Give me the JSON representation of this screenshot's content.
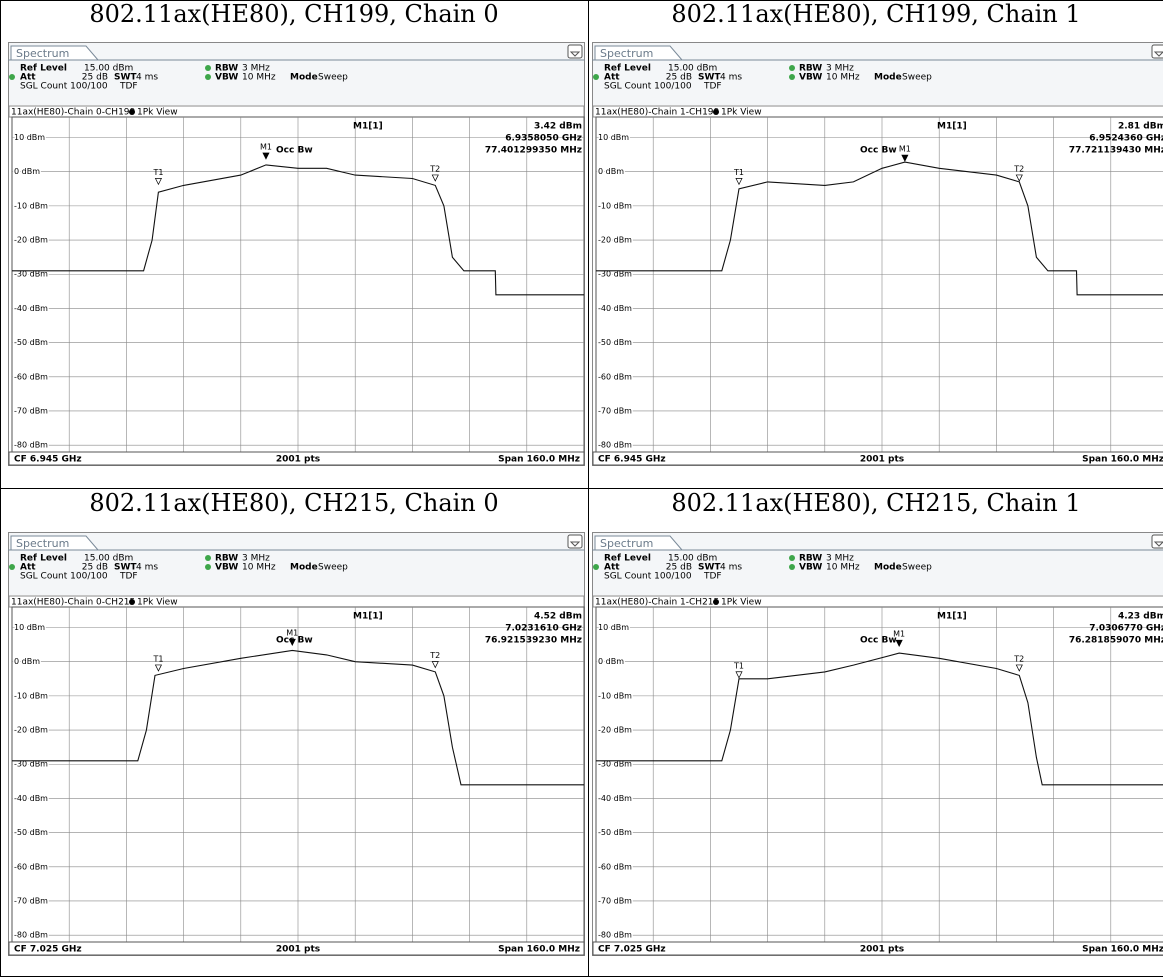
{
  "cells": [
    {
      "heading": "802.11ax(HE80), CH199, Chain 0",
      "screen": {
        "tab": "Spectrum",
        "ref_level_label": "Ref Level",
        "ref_level": "15.00 dBm",
        "att_label": "Att",
        "att": "25 dB",
        "swt_label": "SWT",
        "swt": "4 ms",
        "rbw_label": "RBW",
        "rbw": "3 MHz",
        "vbw_label": "VBW",
        "vbw": "10 MHz",
        "mode_label": "Mode",
        "mode": "Sweep",
        "count": "SGL Count 100/100",
        "tdf": "TDF",
        "trace_title": "11ax(HE80)-Chain 0-CH199",
        "view": "1Pk View",
        "marker_label": "M1[1]",
        "marker_level": "3.42 dBm",
        "marker_freq": "6.9358050 GHz",
        "occ_label": "Occ Bw",
        "occ_bw": "77.401299350 MHz",
        "cf": "CF 6.945 GHz",
        "pts": "2001 pts",
        "span": "Span 160.0 MHz",
        "y_range": [
          -82,
          16
        ],
        "y_grid": [
          {
            "value": 10,
            "label": "10 dBm"
          },
          {
            "value": 0,
            "label": "0 dBm"
          },
          {
            "value": -10,
            "label": "-10 dBm"
          },
          {
            "value": -20,
            "label": "-20 dBm"
          },
          {
            "value": -30,
            "label": "-30 dBm"
          },
          {
            "value": -40,
            "label": "-40 dBm"
          },
          {
            "value": -50,
            "label": "-50 dBm"
          },
          {
            "value": -60,
            "label": "-60 dBm"
          },
          {
            "value": -70,
            "label": "-70 dBm"
          },
          {
            "value": -80,
            "label": "-80 dBm"
          }
        ],
        "markers": [
          {
            "label": "M1",
            "x": 4.44,
            "level": 3.42
          },
          {
            "label": "T1",
            "x": 2.56,
            "level": -4
          },
          {
            "label": "T2",
            "x": 7.4,
            "level": -3
          }
        ],
        "trace": {
          "x": [
            0,
            1,
            2.3,
            2.45,
            2.56,
            3,
            4,
            4.44,
            5,
            5.5,
            6,
            7,
            7.4,
            7.55,
            7.7,
            7.9,
            8.45,
            8.46,
            10
          ],
          "y": [
            -29,
            -29,
            -29,
            -20,
            -6,
            -4,
            -1,
            2,
            1,
            1,
            -1,
            -2,
            -4,
            -10,
            -25,
            -29,
            -29,
            -36,
            -36
          ]
        }
      }
    },
    {
      "heading": "802.11ax(HE80), CH199, Chain 1",
      "screen": {
        "tab": "Spectrum",
        "ref_level_label": "Ref Level",
        "ref_level": "15.00 dBm",
        "att_label": "Att",
        "att": "25 dB",
        "swt_label": "SWT",
        "swt": "4 ms",
        "rbw_label": "RBW",
        "rbw": "3 MHz",
        "vbw_label": "VBW",
        "vbw": "10 MHz",
        "mode_label": "Mode",
        "mode": "Sweep",
        "count": "SGL Count 100/100",
        "tdf": "TDF",
        "trace_title": "11ax(HE80)-Chain 1-CH199",
        "view": "1Pk View",
        "marker_label": "M1[1]",
        "marker_level": "2.81 dBm",
        "marker_freq": "6.9524360 GHz",
        "occ_label": "Occ Bw",
        "occ_bw": "77.721139430 MHz",
        "cf": "CF 6.945 GHz",
        "pts": "2001 pts",
        "span": "Span 160.0 MHz",
        "y_range": [
          -82,
          16
        ],
        "y_grid": [
          {
            "value": 10,
            "label": "10 dBm"
          },
          {
            "value": 0,
            "label": "0 dBm"
          },
          {
            "value": -10,
            "label": "-10 dBm"
          },
          {
            "value": -20,
            "label": "-20 dBm"
          },
          {
            "value": -30,
            "label": "-30 dBm"
          },
          {
            "value": -40,
            "label": "-40 dBm"
          },
          {
            "value": -50,
            "label": "-50 dBm"
          },
          {
            "value": -60,
            "label": "-60 dBm"
          },
          {
            "value": -70,
            "label": "-70 dBm"
          },
          {
            "value": -80,
            "label": "-80 dBm"
          }
        ],
        "markers": [
          {
            "label": "M1",
            "x": 5.4,
            "level": 2.81
          },
          {
            "label": "T1",
            "x": 2.5,
            "level": -4
          },
          {
            "label": "T2",
            "x": 7.4,
            "level": -3
          }
        ],
        "trace": {
          "x": [
            0,
            1,
            2.2,
            2.35,
            2.5,
            3,
            4,
            4.5,
            5,
            5.4,
            6,
            7,
            7.4,
            7.55,
            7.7,
            7.9,
            8.4,
            8.41,
            10
          ],
          "y": [
            -29,
            -29,
            -29,
            -20,
            -5,
            -3,
            -4,
            -3,
            1,
            2.8,
            1,
            -1,
            -3,
            -10,
            -25,
            -29,
            -29,
            -36,
            -36
          ]
        }
      }
    },
    {
      "heading": "802.11ax(HE80), CH215, Chain 0",
      "screen": {
        "tab": "Spectrum",
        "ref_level_label": "Ref Level",
        "ref_level": "15.00 dBm",
        "att_label": "Att",
        "att": "25 dB",
        "swt_label": "SWT",
        "swt": "4 ms",
        "rbw_label": "RBW",
        "rbw": "3 MHz",
        "vbw_label": "VBW",
        "vbw": "10 MHz",
        "mode_label": "Mode",
        "mode": "Sweep",
        "count": "SGL Count 100/100",
        "tdf": "TDF",
        "trace_title": "11ax(HE80)-Chain 0-CH215",
        "view": "1Pk View",
        "marker_label": "M1[1]",
        "marker_level": "4.52 dBm",
        "marker_freq": "7.0231610 GHz",
        "occ_label": "Occ Bw",
        "occ_bw": "76.921539230 MHz",
        "cf": "CF 7.025 GHz",
        "pts": "2001 pts",
        "span": "Span 160.0 MHz",
        "y_range": [
          -82,
          16
        ],
        "y_grid": [
          {
            "value": 10,
            "label": "10 dBm"
          },
          {
            "value": 0,
            "label": "0 dBm"
          },
          {
            "value": -10,
            "label": "-10 dBm"
          },
          {
            "value": -20,
            "label": "-20 dBm"
          },
          {
            "value": -30,
            "label": "-30 dBm"
          },
          {
            "value": -40,
            "label": "-40 dBm"
          },
          {
            "value": -50,
            "label": "-50 dBm"
          },
          {
            "value": -60,
            "label": "-60 dBm"
          },
          {
            "value": -70,
            "label": "-70 dBm"
          },
          {
            "value": -80,
            "label": "-80 dBm"
          }
        ],
        "markers": [
          {
            "label": "M1",
            "x": 4.9,
            "level": 4.52
          },
          {
            "label": "T1",
            "x": 2.56,
            "level": -3
          },
          {
            "label": "T2",
            "x": 7.4,
            "level": -2
          }
        ],
        "trace": {
          "x": [
            0,
            1,
            2.2,
            2.35,
            2.5,
            3,
            4,
            4.9,
            5.5,
            6,
            7,
            7.4,
            7.55,
            7.7,
            7.85,
            10
          ],
          "y": [
            -29,
            -29,
            -29,
            -20,
            -4,
            -2,
            1,
            3.3,
            2,
            0,
            -1,
            -3,
            -10,
            -25,
            -36,
            -36
          ]
        }
      }
    },
    {
      "heading": "802.11ax(HE80), CH215, Chain 1",
      "screen": {
        "tab": "Spectrum",
        "ref_level_label": "Ref Level",
        "ref_level": "15.00 dBm",
        "att_label": "Att",
        "att": "25 dB",
        "swt_label": "SWT",
        "swt": "4 ms",
        "rbw_label": "RBW",
        "rbw": "3 MHz",
        "vbw_label": "VBW",
        "vbw": "10 MHz",
        "mode_label": "Mode",
        "mode": "Sweep",
        "count": "SGL Count 100/100",
        "tdf": "TDF",
        "trace_title": "11ax(HE80)-Chain 1-CH215",
        "view": "1Pk View",
        "marker_label": "M1[1]",
        "marker_level": "4.23 dBm",
        "marker_freq": "7.0306770 GHz",
        "occ_label": "Occ Bw",
        "occ_bw": "76.281859070 MHz",
        "cf": "CF 7.025 GHz",
        "pts": "2001 pts",
        "span": "Span 160.0 MHz",
        "y_range": [
          -82,
          16
        ],
        "y_grid": [
          {
            "value": 10,
            "label": "10 dBm"
          },
          {
            "value": 0,
            "label": "0 dBm"
          },
          {
            "value": -10,
            "label": "-10 dBm"
          },
          {
            "value": -20,
            "label": "-20 dBm"
          },
          {
            "value": -30,
            "label": "-30 dBm"
          },
          {
            "value": -40,
            "label": "-40 dBm"
          },
          {
            "value": -50,
            "label": "-50 dBm"
          },
          {
            "value": -60,
            "label": "-60 dBm"
          },
          {
            "value": -70,
            "label": "-70 dBm"
          },
          {
            "value": -80,
            "label": "-80 dBm"
          }
        ],
        "markers": [
          {
            "label": "M1",
            "x": 5.3,
            "level": 4.23
          },
          {
            "label": "T1",
            "x": 2.5,
            "level": -5
          },
          {
            "label": "T2",
            "x": 7.4,
            "level": -3
          }
        ],
        "trace": {
          "x": [
            0,
            1,
            2.2,
            2.35,
            2.5,
            3,
            4,
            4.5,
            5.3,
            6,
            7,
            7.4,
            7.55,
            7.7,
            7.8,
            10
          ],
          "y": [
            -29,
            -29,
            -29,
            -20,
            -5,
            -5,
            -3,
            -1,
            2.5,
            1,
            -2,
            -4,
            -12,
            -28,
            -36,
            -36
          ]
        }
      }
    }
  ]
}
